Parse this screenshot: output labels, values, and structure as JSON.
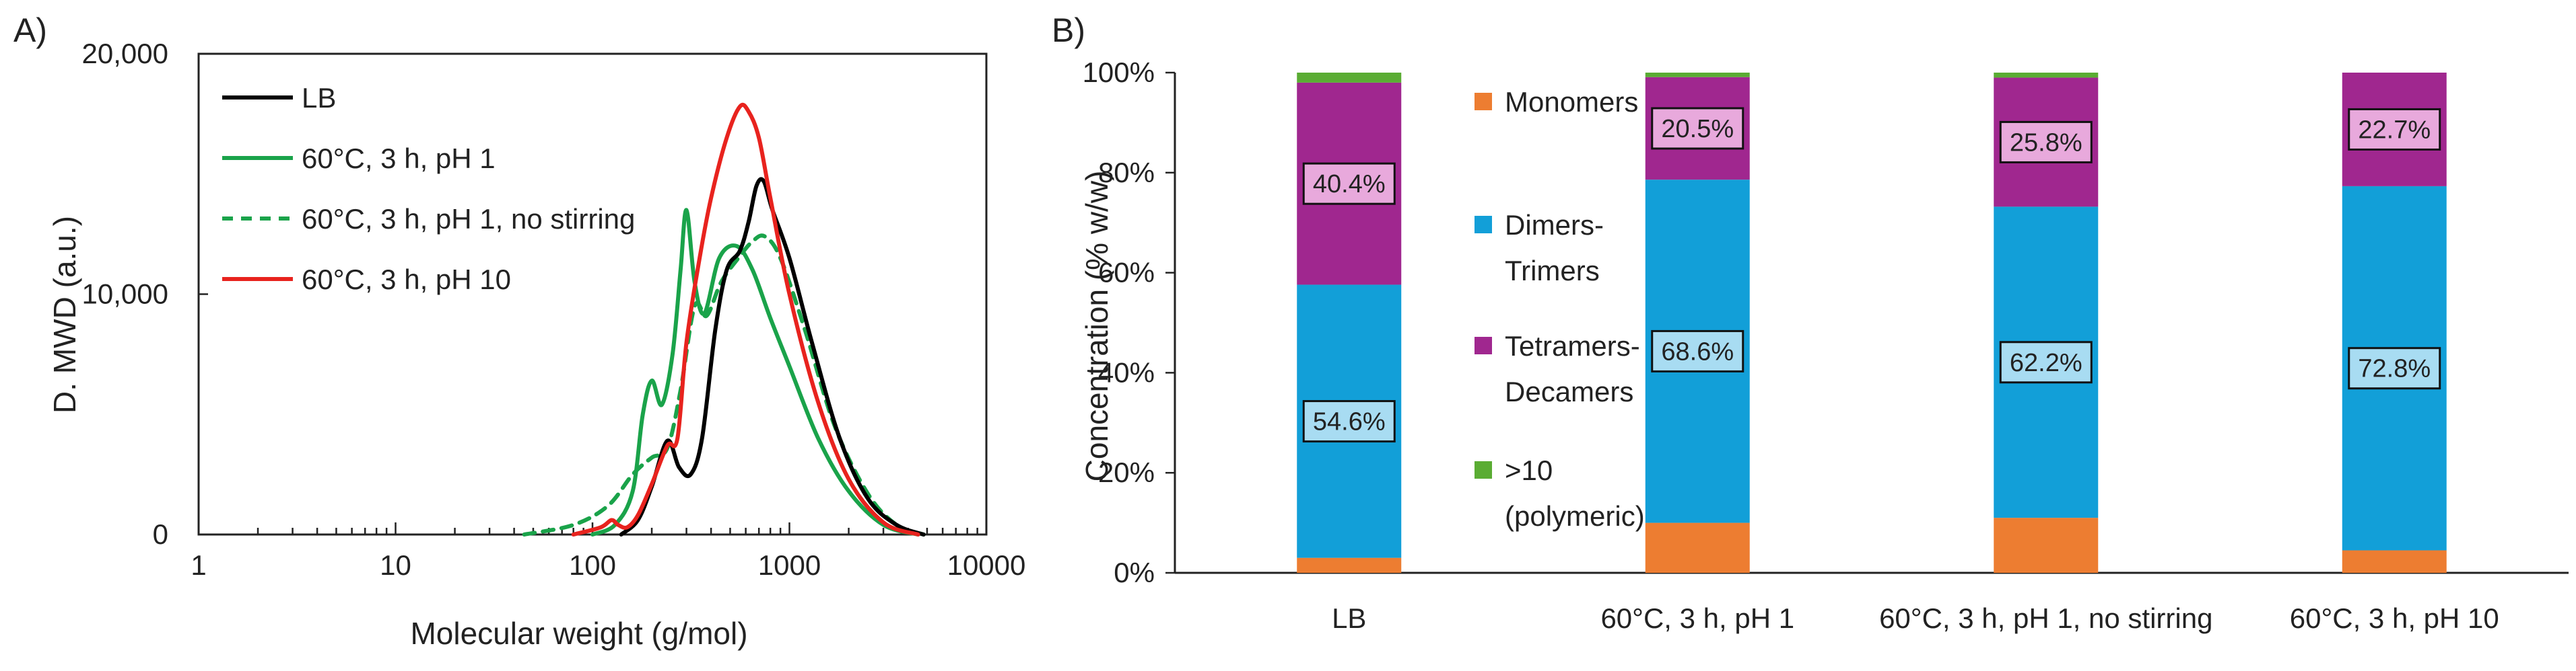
{
  "panelA": {
    "panel_label": "A)",
    "xlabel": "Molecular weight (g/mol)",
    "ylabel": "D. MWD (a.u.)",
    "x_ticks": [
      "1",
      "10",
      "100",
      "1000",
      "10000"
    ],
    "y_ticks": [
      "0",
      "10,000",
      "20,000"
    ],
    "legend": [
      "LB",
      "60°C, 3 h, pH 1",
      "60°C, 3 h, pH 1, no stirring",
      "60°C, 3 h, pH 10"
    ]
  },
  "panelB": {
    "panel_label": "B)",
    "ylabel": "Concentration (% w/w)",
    "y_ticks": [
      "0%",
      "20%",
      "40%",
      "60%",
      "80%",
      "100%"
    ],
    "categories": [
      "LB",
      "60°C, 3 h, pH 1",
      "60°C, 3 h, pH 1, no stirring",
      "60°C, 3 h, pH 10"
    ],
    "legend": [
      {
        "line1": "Monomers",
        "line2": ""
      },
      {
        "line1": "Dimers-",
        "line2": "Trimers"
      },
      {
        "line1": "Tetramers-",
        "line2": "Decamers"
      },
      {
        "line1": ">10",
        "line2": "(polymeric)"
      }
    ],
    "data_labels": {
      "dimers": [
        "54.6%",
        "68.6%",
        "62.2%",
        "72.8%"
      ],
      "tetramers": [
        "40.4%",
        "20.5%",
        "25.8%",
        "22.7%"
      ]
    }
  },
  "chart_data": [
    {
      "type": "line",
      "xscale": "log",
      "xlim": [
        1,
        10000
      ],
      "ylim": [
        0,
        20000
      ],
      "xlabel": "Molecular weight (g/mol)",
      "ylabel": "D. MWD (a.u.)",
      "grid": false,
      "legend_position": "top-left",
      "series": [
        {
          "name": "LB",
          "color": "#000000",
          "dash": false,
          "points": [
            [
              140,
              0
            ],
            [
              170,
              600
            ],
            [
              200,
              2000
            ],
            [
              240,
              3900
            ],
            [
              275,
              2800
            ],
            [
              315,
              2500
            ],
            [
              360,
              4000
            ],
            [
              420,
              8500
            ],
            [
              480,
              11000
            ],
            [
              560,
              11800
            ],
            [
              620,
              13000
            ],
            [
              680,
              14500
            ],
            [
              740,
              14700
            ],
            [
              820,
              13500
            ],
            [
              1000,
              11500
            ],
            [
              1300,
              8000
            ],
            [
              1800,
              4000
            ],
            [
              2500,
              1500
            ],
            [
              3500,
              400
            ],
            [
              4800,
              0
            ]
          ]
        },
        {
          "name": "60°C, 3 h, pH 1",
          "color": "#1aa34a",
          "dash": false,
          "points": [
            [
              100,
              0
            ],
            [
              130,
              400
            ],
            [
              160,
              1800
            ],
            [
              180,
              5000
            ],
            [
              200,
              6400
            ],
            [
              225,
              5400
            ],
            [
              255,
              7500
            ],
            [
              280,
              11000
            ],
            [
              300,
              13500
            ],
            [
              330,
              10500
            ],
            [
              370,
              9200
            ],
            [
              440,
              11500
            ],
            [
              540,
              12000
            ],
            [
              650,
              11000
            ],
            [
              800,
              9000
            ],
            [
              1000,
              7000
            ],
            [
              1400,
              4000
            ],
            [
              2000,
              1800
            ],
            [
              3000,
              400
            ],
            [
              4500,
              0
            ]
          ]
        },
        {
          "name": "60°C, 3 h, pH 1, no stirring",
          "color": "#1aa34a",
          "dash": true,
          "points": [
            [
              45,
              0
            ],
            [
              80,
              400
            ],
            [
              120,
              1200
            ],
            [
              160,
              2500
            ],
            [
              200,
              3200
            ],
            [
              240,
              3600
            ],
            [
              280,
              6000
            ],
            [
              330,
              9500
            ],
            [
              380,
              9100
            ],
            [
              450,
              10500
            ],
            [
              550,
              11500
            ],
            [
              650,
              12200
            ],
            [
              750,
              12400
            ],
            [
              900,
              11500
            ],
            [
              1200,
              8500
            ],
            [
              1700,
              4500
            ],
            [
              2500,
              1700
            ],
            [
              3500,
              400
            ],
            [
              4800,
              0
            ]
          ]
        },
        {
          "name": "60°C, 3 h, pH 10",
          "color": "#e8231e",
          "dash": false,
          "points": [
            [
              80,
              0
            ],
            [
              110,
              300
            ],
            [
              125,
              600
            ],
            [
              135,
              400
            ],
            [
              150,
              300
            ],
            [
              170,
              800
            ],
            [
              200,
              2100
            ],
            [
              240,
              3700
            ],
            [
              270,
              4000
            ],
            [
              300,
              8000
            ],
            [
              350,
              11500
            ],
            [
              400,
              14000
            ],
            [
              480,
              16500
            ],
            [
              560,
              17800
            ],
            [
              620,
              17600
            ],
            [
              700,
              16500
            ],
            [
              800,
              14000
            ],
            [
              1000,
              10000
            ],
            [
              1400,
              5500
            ],
            [
              2000,
              2300
            ],
            [
              3000,
              500
            ],
            [
              4500,
              0
            ]
          ]
        }
      ]
    },
    {
      "type": "bar",
      "stacked": true,
      "ylim": [
        0,
        100
      ],
      "ylabel": "Concentration (% w/w)",
      "categories": [
        "LB",
        "60°C, 3 h, pH 1",
        "60°C, 3 h, pH 1, no stirring",
        "60°C, 3 h, pH 10"
      ],
      "series": [
        {
          "name": "Monomers",
          "color": "#ed7d31",
          "values": [
            3.0,
            10.0,
            11.0,
            4.5
          ]
        },
        {
          "name": "Dimers-Trimers",
          "color": "#129fd8",
          "values": [
            54.6,
            68.6,
            62.2,
            72.8
          ]
        },
        {
          "name": "Tetramers-Decamers",
          "color": "#a0278f",
          "values": [
            40.4,
            20.5,
            25.8,
            22.7
          ]
        },
        {
          "name": ">10 (polymeric)",
          "color": "#5aac33",
          "values": [
            2.0,
            0.9,
            1.0,
            0.0
          ]
        }
      ],
      "legend_position": "inside-left",
      "grid": false
    }
  ]
}
